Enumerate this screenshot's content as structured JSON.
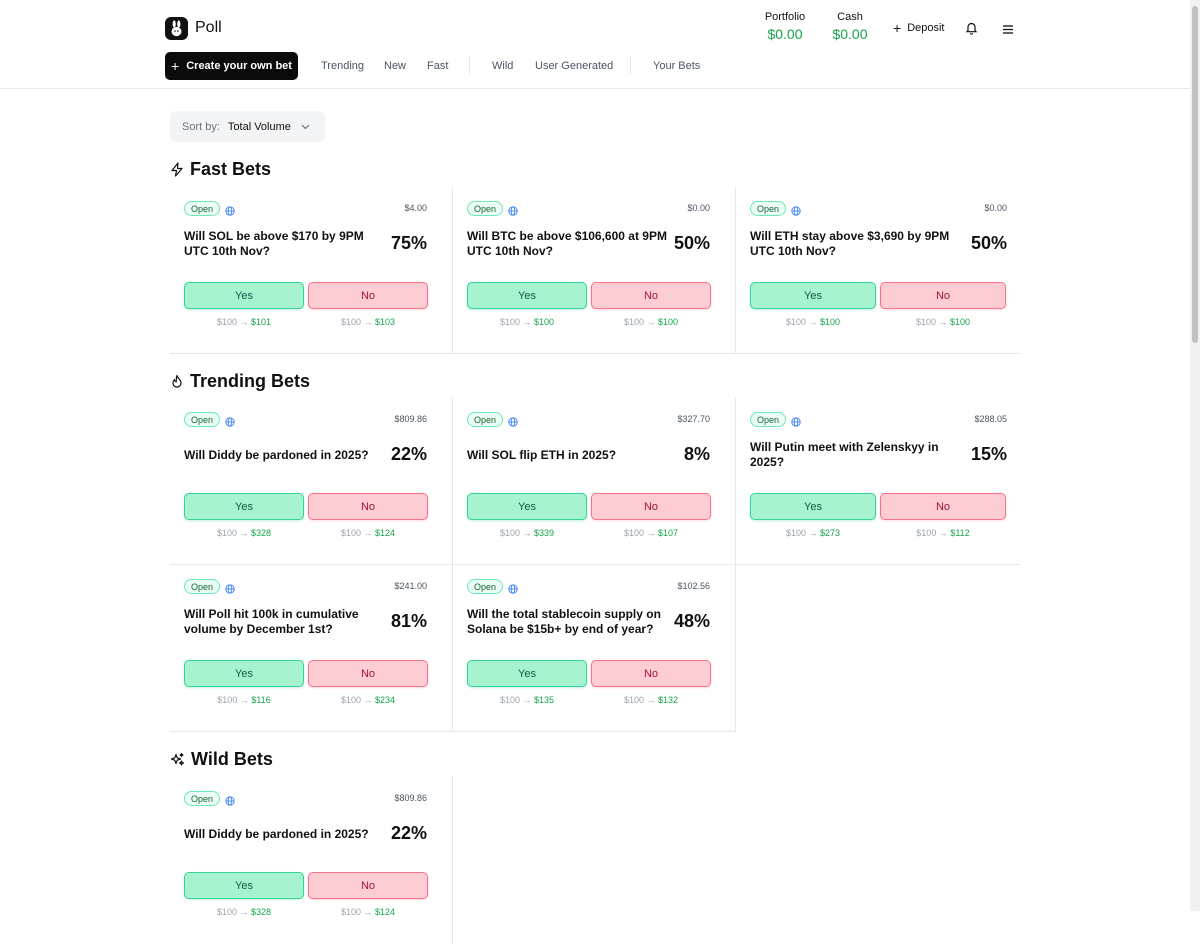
{
  "header": {
    "brand": "Poll",
    "portfolio_label": "Portfolio",
    "portfolio_value": "$0.00",
    "cash_label": "Cash",
    "cash_value": "$0.00",
    "deposit_label": "Deposit"
  },
  "toolbar": {
    "create_label": "Create your own bet",
    "nav": [
      "Trending",
      "New",
      "Fast",
      "Wild",
      "User Generated",
      "Your Bets"
    ]
  },
  "sort": {
    "label": "Sort by:",
    "value": "Total Volume"
  },
  "sections": {
    "fast": {
      "title": "Fast Bets"
    },
    "trending": {
      "title": "Trending Bets"
    },
    "wild": {
      "title": "Wild Bets"
    }
  },
  "cards": [
    {
      "status": "Open",
      "volume": "$4.00",
      "question": "Will SOL be above $170 by 9PM UTC 10th Nov?",
      "percent": "75%",
      "yes": "Yes",
      "no": "No",
      "yes_from": "$100",
      "yes_to": "$101",
      "no_from": "$100",
      "no_to": "$103"
    },
    {
      "status": "Open",
      "volume": "$0.00",
      "question": "Will BTC be above $106,600 at 9PM UTC 10th Nov?",
      "percent": "50%",
      "yes": "Yes",
      "no": "No",
      "yes_from": "$100",
      "yes_to": "$100",
      "no_from": "$100",
      "no_to": "$100"
    },
    {
      "status": "Open",
      "volume": "$0.00",
      "question": "Will ETH stay above $3,690 by 9PM UTC 10th Nov?",
      "percent": "50%",
      "yes": "Yes",
      "no": "No",
      "yes_from": "$100",
      "yes_to": "$100",
      "no_from": "$100",
      "no_to": "$100"
    },
    {
      "status": "Open",
      "volume": "$809.86",
      "question": "Will Diddy be pardoned in 2025?",
      "percent": "22%",
      "yes": "Yes",
      "no": "No",
      "yes_from": "$100",
      "yes_to": "$328",
      "no_from": "$100",
      "no_to": "$124"
    },
    {
      "status": "Open",
      "volume": "$327.70",
      "question": "Will SOL flip ETH in 2025?",
      "percent": "8%",
      "yes": "Yes",
      "no": "No",
      "yes_from": "$100",
      "yes_to": "$339",
      "no_from": "$100",
      "no_to": "$107"
    },
    {
      "status": "Open",
      "volume": "$288.05",
      "question": "Will Putin meet with Zelenskyy in 2025?",
      "percent": "15%",
      "yes": "Yes",
      "no": "No",
      "yes_from": "$100",
      "yes_to": "$273",
      "no_from": "$100",
      "no_to": "$112"
    },
    {
      "status": "Open",
      "volume": "$241.00",
      "question": "Will Poll hit 100k in cumulative volume by December 1st?",
      "percent": "81%",
      "yes": "Yes",
      "no": "No",
      "yes_from": "$100",
      "yes_to": "$116",
      "no_from": "$100",
      "no_to": "$234"
    },
    {
      "status": "Open",
      "volume": "$102.56",
      "question": "Will the total stablecoin supply on Solana be $15b+ by end of year?",
      "percent": "48%",
      "yes": "Yes",
      "no": "No",
      "yes_from": "$100",
      "yes_to": "$135",
      "no_from": "$100",
      "no_to": "$132"
    },
    {
      "status": "Open",
      "volume": "$809.86",
      "question": "Will Diddy be pardoned in 2025?",
      "percent": "22%",
      "yes": "Yes",
      "no": "No",
      "yes_from": "$100",
      "yes_to": "$328",
      "no_from": "$100",
      "no_to": "$124"
    }
  ],
  "icons": {
    "logo": "rabbit-logo-icon",
    "deposit": "plus-icon",
    "bell": "bell-icon",
    "menu": "hamburger-menu-icon",
    "fast": "lightning-icon",
    "trending": "flame-icon",
    "wild": "sparkles-icon",
    "globe": "globe-icon",
    "sort": "chevron-down-icon"
  },
  "colors": {
    "accent_green": "#16a34a",
    "yes_bg": "#a7f3d0",
    "no_bg": "#fecdd3",
    "primary_button": "#0b0b0b"
  }
}
